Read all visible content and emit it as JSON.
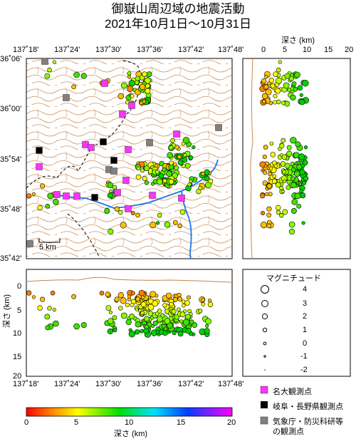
{
  "header": {
    "title_line1": "御嶽山周辺域の地震活動",
    "title_line2": "2021年10月1日～10月31日"
  },
  "map": {
    "lon_ticks": [
      "137˚18'",
      "137˚24'",
      "137˚30'",
      "137˚36'",
      "137˚42'",
      "137˚48'"
    ],
    "lat_ticks": [
      "36˚06'",
      "36˚00'",
      "35˚54'",
      "35˚48'",
      "35˚42'"
    ],
    "scale_label": "5 km"
  },
  "depth_panel_right": {
    "title": "深さ (km)",
    "ticks": [
      "0",
      "5",
      "10",
      "15",
      "20"
    ]
  },
  "depth_panel_bottom": {
    "ylabel": "深さ (km)",
    "ticks": [
      "0",
      "5",
      "10",
      "15",
      "20"
    ],
    "lon_ticks": [
      "137˚18'",
      "137˚24'",
      "137˚30'",
      "137˚36'",
      "137˚42'",
      "137˚48'"
    ]
  },
  "magnitude_legend": {
    "title": "マグニチュード",
    "entries": [
      "4",
      "3",
      "2",
      "1",
      "0",
      "-1",
      "-2"
    ]
  },
  "station_legend": {
    "items": [
      {
        "label": "名大観測点",
        "color": "#ff33ff"
      },
      {
        "label": "岐阜・長野県観測点",
        "color": "#000000"
      },
      {
        "label_line1": "気象庁・防災科研等",
        "label_line2": "の観測点",
        "color": "#808080"
      }
    ]
  },
  "colorbar": {
    "ticks": [
      "0",
      "5",
      "10",
      "15",
      "20"
    ],
    "label": "深さ (km)"
  }
}
